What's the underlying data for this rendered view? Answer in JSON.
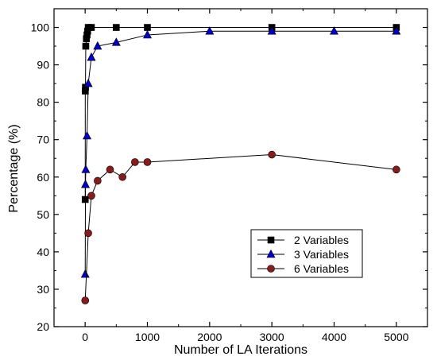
{
  "chart_data": {
    "type": "line",
    "xlabel": "Number of LA Iterations",
    "ylabel": "Percentage (%)",
    "xlim": [
      -500,
      5500
    ],
    "ylim": [
      20,
      105
    ],
    "x_ticks": [
      0,
      1000,
      2000,
      3000,
      4000,
      5000
    ],
    "y_ticks": [
      20,
      30,
      40,
      50,
      60,
      70,
      80,
      90,
      100
    ],
    "x_tick_labels": [
      "0",
      "1000",
      "2000",
      "3000",
      "4000",
      "5000"
    ],
    "y_tick_labels": [
      "20",
      "30",
      "40",
      "50",
      "60",
      "70",
      "80",
      "90",
      "100"
    ],
    "grid": false,
    "legend_position": "bottom-right",
    "series": [
      {
        "name": "2 Variables",
        "marker": "square",
        "color": "#000000",
        "x": [
          1,
          2,
          5,
          10,
          20,
          30,
          40,
          50,
          100,
          500,
          1000,
          3000,
          5000
        ],
        "y": [
          54,
          83,
          84,
          95,
          97,
          98,
          99,
          100,
          100,
          100,
          100,
          100,
          100
        ]
      },
      {
        "name": "3 Variables",
        "marker": "triangle",
        "color": "#0000c8",
        "x": [
          1,
          5,
          10,
          30,
          50,
          100,
          200,
          500,
          1000,
          2000,
          3000,
          4000,
          5000
        ],
        "y": [
          34,
          58,
          62,
          71,
          85,
          92,
          95,
          96,
          98,
          99,
          99,
          99,
          99
        ]
      },
      {
        "name": "6 Variables",
        "marker": "circle",
        "color": "#8b1a1a",
        "x": [
          1,
          50,
          100,
          200,
          400,
          600,
          800,
          1000,
          3000,
          5000
        ],
        "y": [
          27,
          45,
          55,
          59,
          62,
          60,
          64,
          64,
          66,
          62
        ]
      }
    ]
  }
}
